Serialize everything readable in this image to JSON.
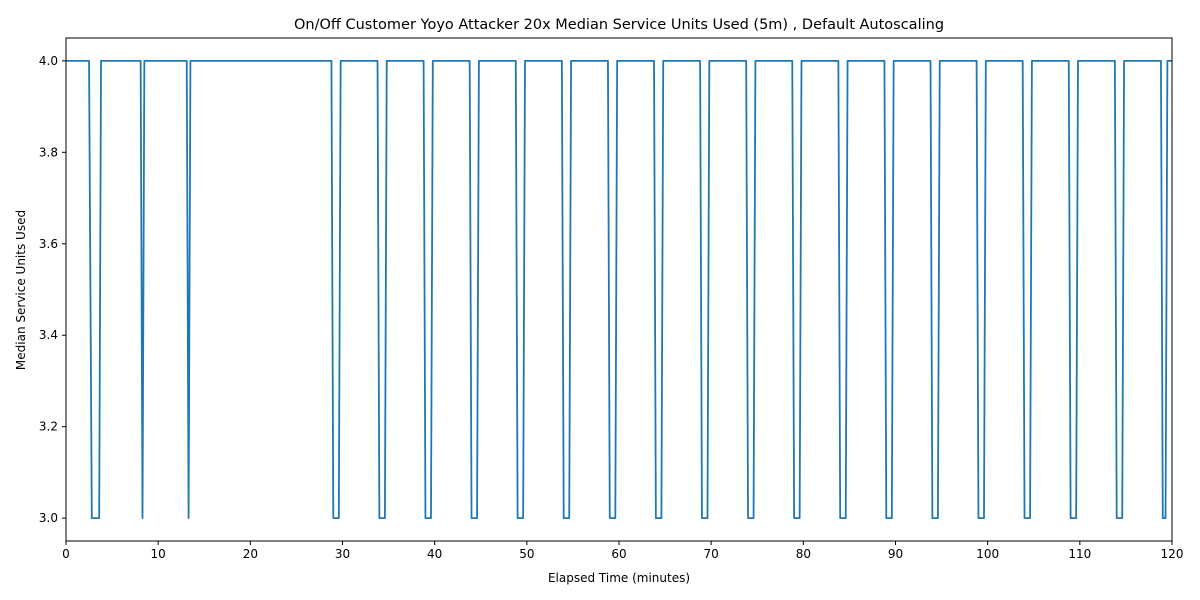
{
  "chart_data": {
    "type": "line",
    "title": "On/Off Customer Yoyo Attacker 20x Median Service Units Used (5m) , Default Autoscaling",
    "xlabel": "Elapsed Time (minutes)",
    "ylabel": "Median Service Units Used",
    "xlim": [
      0,
      120
    ],
    "ylim": [
      2.95,
      4.05
    ],
    "xticks": [
      0,
      10,
      20,
      30,
      40,
      50,
      60,
      70,
      80,
      90,
      100,
      110,
      120
    ],
    "yticks": [
      "3.0",
      "3.2",
      "3.4",
      "3.6",
      "3.8",
      "4.0"
    ],
    "grid": false,
    "color": "#1f77b4",
    "series": [
      {
        "values": [
          [
            0,
            4.0
          ],
          [
            2.5,
            4.0
          ],
          [
            2.8,
            3.0
          ],
          [
            3.6,
            3.0
          ],
          [
            3.8,
            4.0
          ],
          [
            8.1,
            4.0
          ],
          [
            8.3,
            3.0
          ],
          [
            8.5,
            4.0
          ],
          [
            13.1,
            4.0
          ],
          [
            13.3,
            3.0
          ],
          [
            13.5,
            4.0
          ],
          [
            28.8,
            4.0
          ],
          [
            29.0,
            3.0
          ],
          [
            29.6,
            3.0
          ],
          [
            29.8,
            4.0
          ],
          [
            33.8,
            4.0
          ],
          [
            34.0,
            3.0
          ],
          [
            34.6,
            3.0
          ],
          [
            34.8,
            4.0
          ],
          [
            38.8,
            4.0
          ],
          [
            39.0,
            3.0
          ],
          [
            39.6,
            3.0
          ],
          [
            39.8,
            4.0
          ],
          [
            43.8,
            4.0
          ],
          [
            44.0,
            3.0
          ],
          [
            44.6,
            3.0
          ],
          [
            44.8,
            4.0
          ],
          [
            48.8,
            4.0
          ],
          [
            49.0,
            3.0
          ],
          [
            49.6,
            3.0
          ],
          [
            49.8,
            4.0
          ],
          [
            53.8,
            4.0
          ],
          [
            54.0,
            3.0
          ],
          [
            54.6,
            3.0
          ],
          [
            54.8,
            4.0
          ],
          [
            58.8,
            4.0
          ],
          [
            59.0,
            3.0
          ],
          [
            59.6,
            3.0
          ],
          [
            59.8,
            4.0
          ],
          [
            63.8,
            4.0
          ],
          [
            64.0,
            3.0
          ],
          [
            64.6,
            3.0
          ],
          [
            64.8,
            4.0
          ],
          [
            68.8,
            4.0
          ],
          [
            69.0,
            3.0
          ],
          [
            69.6,
            3.0
          ],
          [
            69.8,
            4.0
          ],
          [
            73.8,
            4.0
          ],
          [
            74.0,
            3.0
          ],
          [
            74.6,
            3.0
          ],
          [
            74.8,
            4.0
          ],
          [
            78.8,
            4.0
          ],
          [
            79.0,
            3.0
          ],
          [
            79.6,
            3.0
          ],
          [
            79.8,
            4.0
          ],
          [
            83.8,
            4.0
          ],
          [
            84.0,
            3.0
          ],
          [
            84.6,
            3.0
          ],
          [
            84.8,
            4.0
          ],
          [
            88.8,
            4.0
          ],
          [
            89.0,
            3.0
          ],
          [
            89.6,
            3.0
          ],
          [
            89.8,
            4.0
          ],
          [
            93.8,
            4.0
          ],
          [
            94.0,
            3.0
          ],
          [
            94.6,
            3.0
          ],
          [
            94.8,
            4.0
          ],
          [
            98.8,
            4.0
          ],
          [
            99.0,
            3.0
          ],
          [
            99.6,
            3.0
          ],
          [
            99.8,
            4.0
          ],
          [
            103.8,
            4.0
          ],
          [
            104.0,
            3.0
          ],
          [
            104.6,
            3.0
          ],
          [
            104.8,
            4.0
          ],
          [
            108.8,
            4.0
          ],
          [
            109.0,
            3.0
          ],
          [
            109.6,
            3.0
          ],
          [
            109.8,
            4.0
          ],
          [
            113.8,
            4.0
          ],
          [
            114.0,
            3.0
          ],
          [
            114.6,
            3.0
          ],
          [
            114.8,
            4.0
          ],
          [
            118.8,
            4.0
          ],
          [
            119.0,
            3.0
          ],
          [
            119.3,
            3.0
          ],
          [
            119.5,
            4.0
          ],
          [
            120,
            4.0
          ]
        ]
      }
    ]
  }
}
